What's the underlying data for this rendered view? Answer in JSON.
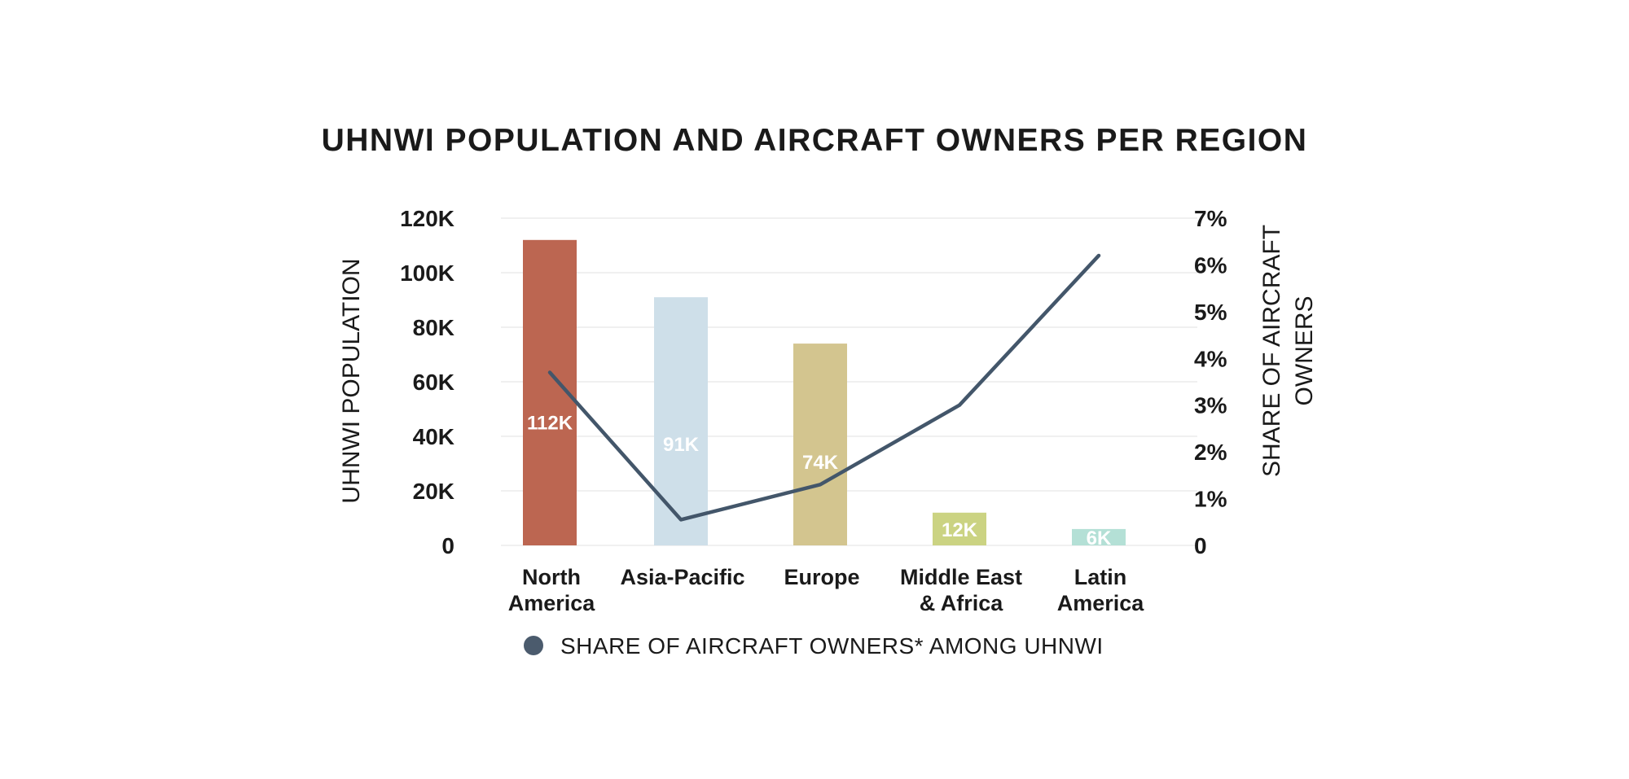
{
  "chart_data": {
    "type": "bar",
    "title": "UHNWI POPULATION AND AIRCRAFT OWNERS PER REGION",
    "categories": [
      [
        "North",
        "America"
      ],
      [
        "Asia-Pacific"
      ],
      [
        "Europe"
      ],
      [
        "Middle East",
        "& Africa"
      ],
      [
        "Latin",
        "America"
      ]
    ],
    "bars": {
      "values": [
        112000,
        91000,
        74000,
        12000,
        6000
      ],
      "labels": [
        "112K",
        "91K",
        "74K",
        "12K",
        "6K"
      ],
      "colors": [
        "#bc6651",
        "#cedfe9",
        "#d3c58f",
        "#cbd382",
        "#b4e0d6"
      ]
    },
    "line": {
      "name": "SHARE OF AIRCRAFT OWNERS* AMONG UHNWI",
      "values": [
        3.7,
        0.55,
        1.3,
        3.0,
        6.2
      ],
      "color": "#43566a"
    },
    "y_left": {
      "label": "UHNWI POPULATION",
      "ticks": [
        "0",
        "20K",
        "40K",
        "60K",
        "80K",
        "100K",
        "120K"
      ],
      "range": [
        0,
        120000
      ]
    },
    "y_right": {
      "label_lines": [
        "SHARE OF AIRCRAFT",
        "OWNERS"
      ],
      "ticks": [
        "0",
        "1%",
        "2%",
        "3%",
        "4%",
        "5%",
        "6%",
        "7%"
      ],
      "range": [
        0,
        7
      ]
    },
    "grid": true,
    "legend": {
      "position": "bottom",
      "marker_color": "#4b5b6d",
      "text": "SHARE OF AIRCRAFT OWNERS* AMONG UHNWI"
    }
  }
}
